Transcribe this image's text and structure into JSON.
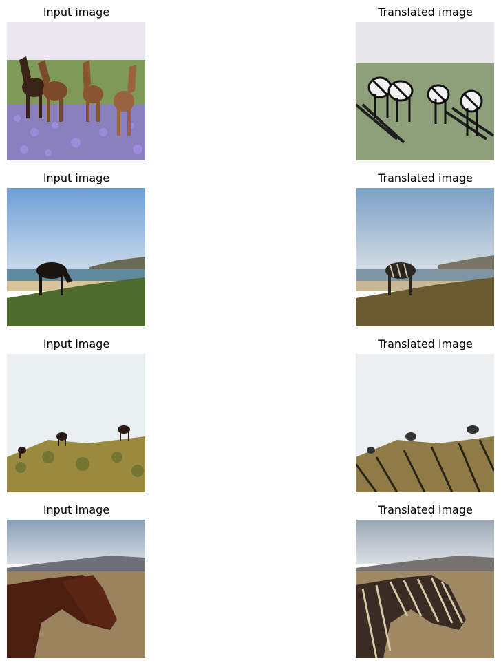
{
  "figure": {
    "rows": [
      {
        "left_title": "Input image",
        "right_title": "Translated image"
      },
      {
        "left_title": "Input image",
        "right_title": "Translated image"
      },
      {
        "left_title": "Input image",
        "right_title": "Translated image"
      },
      {
        "left_title": "Input image",
        "right_title": "Translated image"
      }
    ]
  }
}
